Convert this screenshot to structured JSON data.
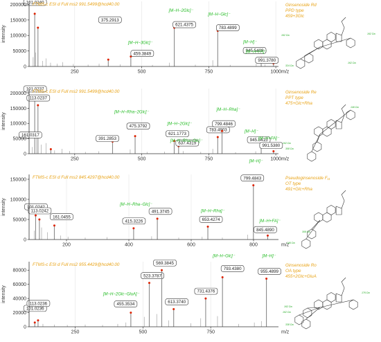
{
  "figure": {
    "accent_color": "#e8a317",
    "ion_label_color": "#22bb22",
    "peak_marker_color": "#dd2200"
  },
  "chart_data": [
    {
      "type": "bar",
      "scan": "FTMS-c ESI d Full ms2 991.5499@hcd40.00",
      "compound": [
        "Ginsenoside Rd",
        "PPD type",
        "459+3Glc"
      ],
      "ylabel": "intensity",
      "xlabel": "m/z",
      "xlim": [
        80,
        1010
      ],
      "ylim": [
        0,
        210000
      ],
      "x_ticks": [
        250,
        500,
        750,
        1000
      ],
      "y_ticks": [
        0,
        50000,
        100000,
        150000,
        200000
      ],
      "peaks": [
        {
          "mz": 101.024,
          "intensity": 170000,
          "label": "101.0240"
        },
        {
          "mz": 113.024,
          "intensity": 125000,
          "label": "113.0240"
        },
        {
          "mz": 375.2913,
          "intensity": 22000,
          "label": "375.2913"
        },
        {
          "mz": 459.3849,
          "intensity": 32000,
          "label": "459.3849",
          "ion": "[M−H−3Glc]⁻"
        },
        {
          "mz": 621.4375,
          "intensity": 125000,
          "label": "621.4375",
          "ion": "[M−H−2Glc]⁻"
        },
        {
          "mz": 783.4899,
          "intensity": 115000,
          "label": "783.4899",
          "ion": "[M−H−Glc]⁻"
        },
        {
          "mz": 945.5409,
          "intensity": 28000,
          "label": "945.5409",
          "ion": "[M−H]⁻"
        },
        {
          "mz": 991.378,
          "intensity": 10000,
          "label": "991.3780",
          "ion": "[M−H+FA]⁻"
        }
      ],
      "noise_peaks": [
        {
          "mz": 95,
          "intensity": 30000
        },
        {
          "mz": 105,
          "intensity": 45000
        },
        {
          "mz": 130,
          "intensity": 18000
        },
        {
          "mz": 143,
          "intensity": 26000
        },
        {
          "mz": 160,
          "intensity": 12000
        },
        {
          "mz": 185,
          "intensity": 9000
        },
        {
          "mz": 205,
          "intensity": 14000
        },
        {
          "mz": 245,
          "intensity": 8000
        },
        {
          "mz": 300,
          "intensity": 6000
        },
        {
          "mz": 341,
          "intensity": 9000
        },
        {
          "mz": 420,
          "intensity": 7000
        },
        {
          "mz": 540,
          "intensity": 5000
        },
        {
          "mz": 603,
          "intensity": 12000
        },
        {
          "mz": 700,
          "intensity": 6000
        },
        {
          "mz": 765,
          "intensity": 20000
        },
        {
          "mz": 830,
          "intensity": 5000
        },
        {
          "mz": 927,
          "intensity": 9000
        },
        {
          "mz": 960,
          "intensity": 7000
        }
      ],
      "structure_labels": [
        "162 Da",
        "162 Da",
        "162 Da",
        "324 Da"
      ]
    },
    {
      "type": "bar",
      "scan": "FTMS-c ESI d Full ms2 991.5499@hcd40.00",
      "compound": [
        "Ginsenoside Re",
        "PPT type",
        "475+Glc+Rha"
      ],
      "ylabel": "intensity",
      "xlabel": "m/z",
      "xlim": [
        80,
        1010
      ],
      "ylim": [
        0,
        215000
      ],
      "x_ticks": [
        250,
        500,
        750,
        1000
      ],
      "y_ticks": [
        0,
        50000,
        100000,
        150000,
        200000
      ],
      "peaks": [
        {
          "mz": 101.0237,
          "intensity": 190000,
          "label": "101.0237"
        },
        {
          "mz": 113.0237,
          "intensity": 160000,
          "label": "113.0237"
        },
        {
          "mz": 161.0317,
          "intensity": 15000,
          "label": "161.0317"
        },
        {
          "mz": 391.2853,
          "intensity": 40000,
          "label": "391.2853"
        },
        {
          "mz": 475.3792,
          "intensity": 58000,
          "label": "475.3792",
          "ion": "[M−H−Rha−2Glc]⁻"
        },
        {
          "mz": 621.1773,
          "intensity": 42000,
          "label": "621.1773",
          "ion": "[M−H−2Glc]⁻"
        },
        {
          "mz": 637.4319,
          "intensity": 25000,
          "label": "637.4319",
          "ion": "[M−H−Rha−Glc]⁻"
        },
        {
          "mz": 783.4903,
          "intensity": 55000,
          "label": "783.4903"
        },
        {
          "mz": 799.4846,
          "intensity": 75000,
          "label": "799.4846",
          "ion": "[M−H−Rha]⁻"
        },
        {
          "mz": 945.5415,
          "intensity": 22000,
          "label": "945.5415",
          "ion": "[M−H]⁻"
        },
        {
          "mz": 991.538,
          "intensity": 8000,
          "label": "991.5380",
          "ion": "[M−H+FA]⁻"
        }
      ],
      "noise_peaks": [
        {
          "mz": 92,
          "intensity": 22000
        },
        {
          "mz": 107,
          "intensity": 52000
        },
        {
          "mz": 125,
          "intensity": 30000
        },
        {
          "mz": 143,
          "intensity": 35000
        },
        {
          "mz": 175,
          "intensity": 11000
        },
        {
          "mz": 203,
          "intensity": 16000
        },
        {
          "mz": 231,
          "intensity": 9000
        },
        {
          "mz": 290,
          "intensity": 6000
        },
        {
          "mz": 340,
          "intensity": 8000
        },
        {
          "mz": 457,
          "intensity": 14000
        },
        {
          "mz": 520,
          "intensity": 6000
        },
        {
          "mz": 585,
          "intensity": 7000
        },
        {
          "mz": 655,
          "intensity": 9000
        },
        {
          "mz": 720,
          "intensity": 6000
        },
        {
          "mz": 765,
          "intensity": 16000
        },
        {
          "mz": 850,
          "intensity": 5000
        },
        {
          "mz": 925,
          "intensity": 8000
        }
      ],
      "structure_labels": [
        "146 Da",
        "162 Da",
        "308 Da"
      ]
    },
    {
      "type": "bar",
      "scan": "FTMS-c ESI d Full ms2 845.4297@hcd40.00",
      "compound": [
        "Pseudoginsenoside F₁₁",
        "OT type",
        "491+Glc+Rha"
      ],
      "ylabel": "intensity",
      "xlabel": "m/z",
      "xlim": [
        80,
        880
      ],
      "ylim": [
        0,
        162000
      ],
      "x_ticks": [
        200,
        400,
        600,
        800
      ],
      "y_ticks": [
        0,
        50000,
        100000,
        150000
      ],
      "peaks": [
        {
          "mz": 101.0242,
          "intensity": 60000,
          "label": "101.0242"
        },
        {
          "mz": 113.0242,
          "intensity": 50000,
          "label": "113.0242"
        },
        {
          "mz": 161.0455,
          "intensity": 35000,
          "label": "161.0455"
        },
        {
          "mz": 415.3226,
          "intensity": 28000,
          "label": "415.3226"
        },
        {
          "mz": 491.3745,
          "intensity": 52000,
          "label": "491.3745",
          "ion": "[M−H−Rha−Glc]⁻"
        },
        {
          "mz": 653.4274,
          "intensity": 32000,
          "label": "653.4274",
          "ion": "[M−H−Rha]⁻"
        },
        {
          "mz": 799.4843,
          "intensity": 135000,
          "label": "799.4843",
          "ion": "[M−H]⁻"
        },
        {
          "mz": 845.489,
          "intensity": 10000,
          "label": "845.4890",
          "ion": "[M−H+FA]⁻"
        }
      ],
      "noise_peaks": [
        {
          "mz": 97,
          "intensity": 22000
        },
        {
          "mz": 120,
          "intensity": 30000
        },
        {
          "mz": 139,
          "intensity": 18000
        },
        {
          "mz": 181,
          "intensity": 10000
        },
        {
          "mz": 205,
          "intensity": 7000
        },
        {
          "mz": 260,
          "intensity": 5000
        },
        {
          "mz": 330,
          "intensity": 6000
        },
        {
          "mz": 473,
          "intensity": 8000
        },
        {
          "mz": 560,
          "intensity": 5000
        },
        {
          "mz": 635,
          "intensity": 7000
        },
        {
          "mz": 700,
          "intensity": 5000
        },
        {
          "mz": 781,
          "intensity": 12000
        }
      ],
      "structure_labels": [
        "308 Da",
        "146 Da"
      ]
    },
    {
      "type": "bar",
      "scan": "FTMS-c ESI d Full ms2 955.4429@hcd40.00",
      "compound": [
        "Ginsenoside Ro",
        "OA type",
        "455+2Glc+GluA"
      ],
      "ylabel": "intensity",
      "xlabel": "m/z",
      "xlim": [
        80,
        1000
      ],
      "ylim": [
        0,
        92000
      ],
      "x_ticks": [
        250,
        500,
        750
      ],
      "y_ticks": [
        0,
        20000,
        40000,
        60000,
        80000
      ],
      "peaks": [
        {
          "mz": 101.0236,
          "intensity": 6000,
          "label": "101.0236"
        },
        {
          "mz": 113.0236,
          "intensity": 9000,
          "label": "113.0236"
        },
        {
          "mz": 455.3534,
          "intensity": 20000,
          "label": "455.3534",
          "ion": "[M−H−2Glc−GluA]⁻"
        },
        {
          "mz": 523.3787,
          "intensity": 62000,
          "label": "523.3787"
        },
        {
          "mz": 569.3845,
          "intensity": 80000,
          "label": "569.3845"
        },
        {
          "mz": 613.374,
          "intensity": 25000,
          "label": "613.3740"
        },
        {
          "mz": 731.4376,
          "intensity": 40000,
          "label": "731.4376"
        },
        {
          "mz": 793.438,
          "intensity": 70000,
          "label": "793.4380",
          "ion": "[M−H−Glc]⁻"
        },
        {
          "mz": 955.4899,
          "intensity": 68000,
          "label": "955.4899",
          "ion": "[M−H]⁻"
        }
      ],
      "noise_peaks": [
        {
          "mz": 131,
          "intensity": 4000
        },
        {
          "mz": 173,
          "intensity": 3000
        },
        {
          "mz": 221,
          "intensity": 2500
        },
        {
          "mz": 287,
          "intensity": 3000
        },
        {
          "mz": 351,
          "intensity": 2500
        },
        {
          "mz": 407,
          "intensity": 4000
        },
        {
          "mz": 437,
          "intensity": 6000
        },
        {
          "mz": 505,
          "intensity": 14000
        },
        {
          "mz": 551,
          "intensity": 18000
        },
        {
          "mz": 595,
          "intensity": 9000
        },
        {
          "mz": 677,
          "intensity": 5000
        },
        {
          "mz": 713,
          "intensity": 12000
        },
        {
          "mz": 775,
          "intensity": 15000
        },
        {
          "mz": 853,
          "intensity": 4000
        },
        {
          "mz": 911,
          "intensity": 6000
        },
        {
          "mz": 937,
          "intensity": 8000
        }
      ],
      "structure_labels": [
        "162 Da",
        "162 Da",
        "176 Da",
        "338 Da"
      ]
    }
  ]
}
